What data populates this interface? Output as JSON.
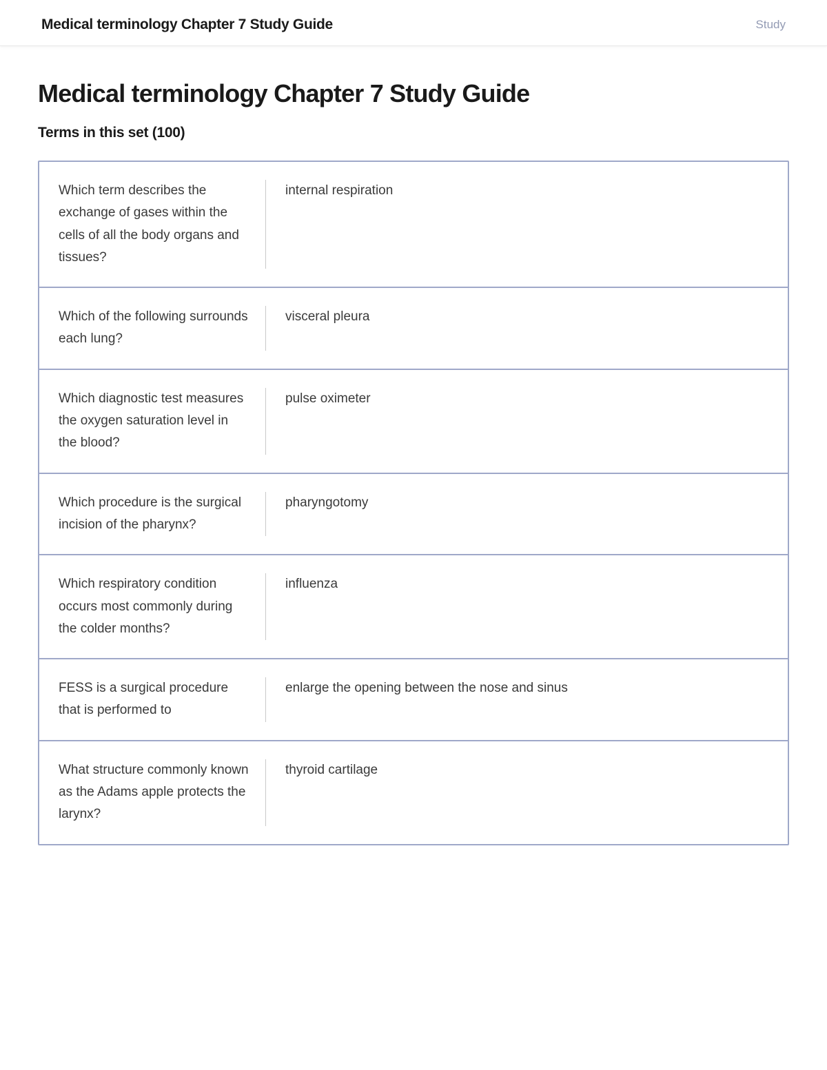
{
  "header": {
    "title": "Medical terminology Chapter 7 Study Guide",
    "study_label": "Study"
  },
  "page": {
    "title": "Medical terminology Chapter 7 Study Guide",
    "subtitle": "Terms in this set (100)"
  },
  "styling": {
    "border_color": "#9fa8c9",
    "text_color": "#3a3a3a",
    "title_color": "#1a1a1a",
    "study_link_color": "#939bb4",
    "background_color": "#ffffff",
    "divider_color": "#c8c8c8",
    "page_title_fontsize": 36,
    "subtitle_fontsize": 21,
    "body_fontsize": 19
  },
  "terms": [
    {
      "question": "Which term describes the exchange of gases within the cells of all the body organs and tissues?",
      "answer": "internal respiration"
    },
    {
      "question": "Which of the following surrounds each lung?",
      "answer": "visceral pleura"
    },
    {
      "question": "Which diagnostic test measures the oxygen saturation level in the blood?",
      "answer": "pulse oximeter"
    },
    {
      "question": "Which procedure is the surgical incision of the pharynx?",
      "answer": "pharyngotomy"
    },
    {
      "question": "Which respiratory condition occurs most commonly during the colder months?",
      "answer": "influenza"
    },
    {
      "question": "FESS is a surgical procedure that is performed to",
      "answer": "enlarge the opening between the nose and sinus"
    },
    {
      "question": "What structure commonly known as the Adams apple protects the larynx?",
      "answer": "thyroid cartilage"
    }
  ]
}
